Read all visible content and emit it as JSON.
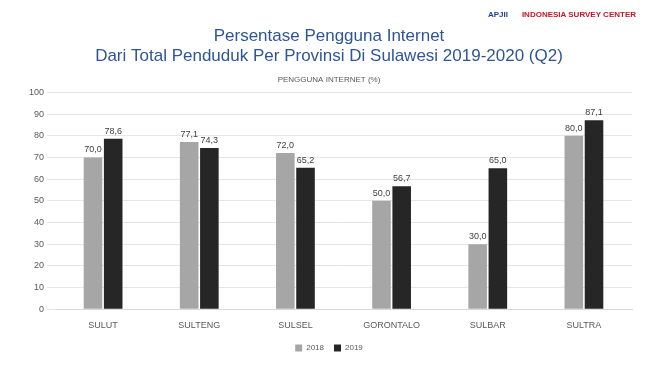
{
  "logos": [
    "APJII",
    "INDONESIA SURVEY CENTER"
  ],
  "chart_data": {
    "type": "bar",
    "title": [
      "Persentase Pengguna Internet",
      "Dari Total Penduduk Per Provinsi Di Sulawesi 2019-2020 (Q2)"
    ],
    "subtitle": "PENGGUNA INTERNET (%)",
    "categories": [
      "SULUT",
      "SULTENG",
      "SULSEL",
      "GORONTALO",
      "SULBAR",
      "SULTRA"
    ],
    "series": [
      {
        "name": "2018",
        "color": "#a6a6a6",
        "values": [
          70,
          77.1,
          72,
          50,
          30,
          80
        ],
        "value_labels": [
          "70,0",
          "77,1",
          "72,0",
          "50,0",
          "30,0",
          "80,0"
        ]
      },
      {
        "name": "2019",
        "color": "#262626",
        "values": [
          78.6,
          74.3,
          65.2,
          56.7,
          65,
          87.1
        ],
        "value_labels": [
          "78,6",
          "74,3",
          "65,2",
          "56,7",
          "65,0",
          "87,1"
        ]
      }
    ],
    "ylim": [
      0,
      100
    ],
    "yticks": [
      0,
      10,
      20,
      30,
      40,
      50,
      60,
      70,
      80,
      90,
      100
    ],
    "grid": true,
    "legend": "bottom",
    "data_labels": true
  }
}
